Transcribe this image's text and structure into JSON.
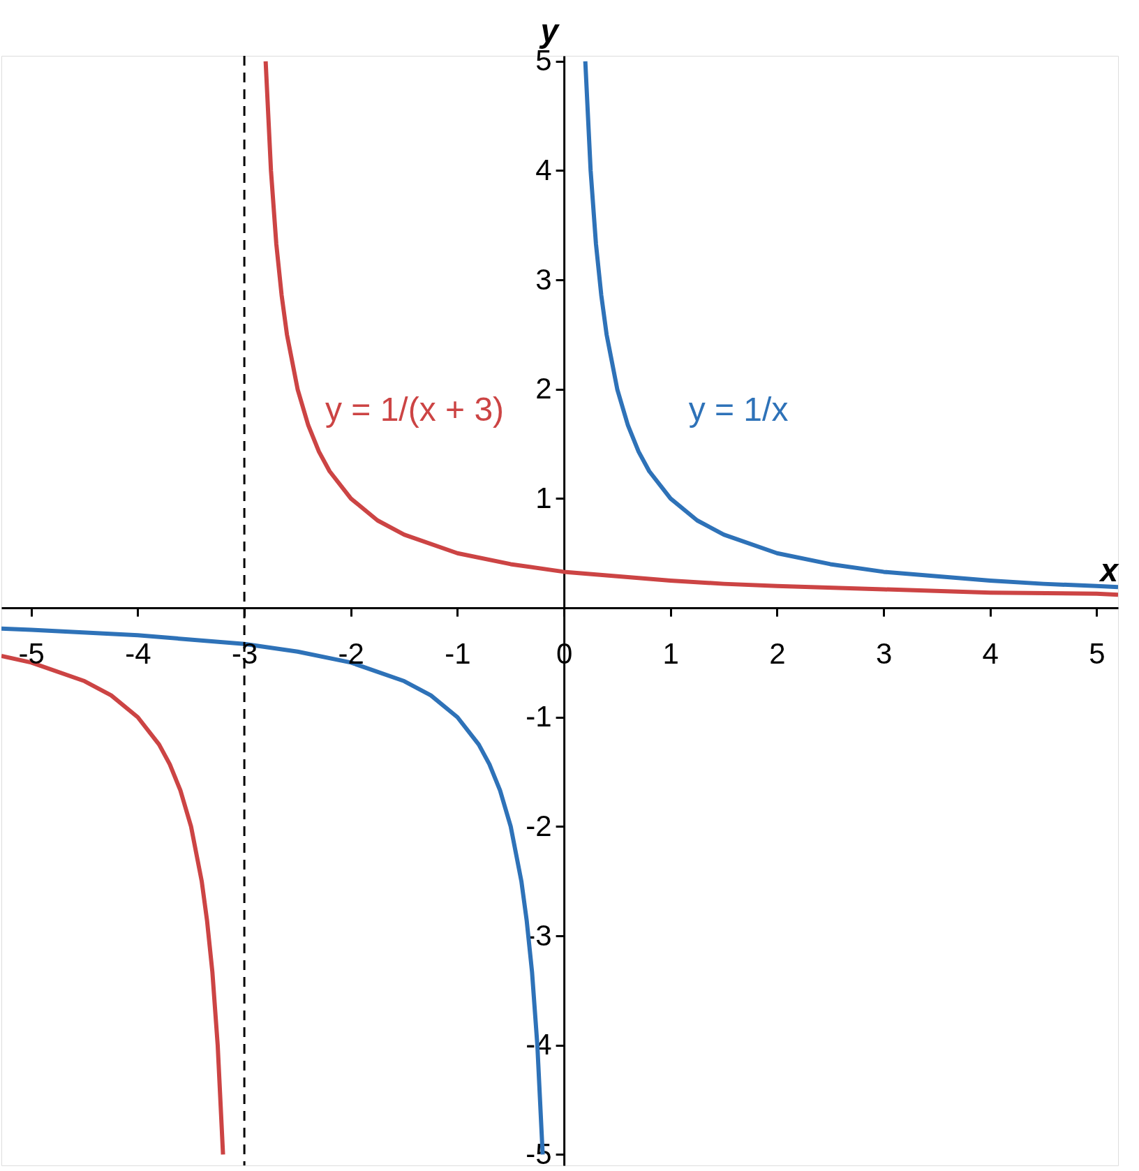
{
  "chart_data": {
    "type": "line",
    "xlabel": "x",
    "ylabel": "y",
    "xlim": [
      -5.28,
      5.2
    ],
    "ylim": [
      -5.1,
      5.05
    ],
    "xticks": [
      -5,
      -4,
      -3,
      -2,
      -1,
      0,
      1,
      2,
      3,
      4,
      5
    ],
    "yticks": [
      -5,
      -4,
      -3,
      -2,
      -1,
      1,
      2,
      3,
      4,
      5
    ],
    "grid": false,
    "line_style": "solid",
    "marker": "none",
    "series": [
      {
        "name": "y = 1/(x + 3)",
        "color": "#cc4444",
        "x": [
          -5.28,
          -5,
          -4.5,
          -4.25,
          -4,
          -3.8,
          -3.7,
          -3.6,
          -3.5,
          -3.4,
          -3.35,
          -3.3,
          -3.25,
          -3.2,
          -3,
          -2.8,
          -2.75,
          -2.7,
          -2.65,
          -2.6,
          -2.5,
          -2.4,
          -2.3,
          -2.2,
          -2,
          -1.75,
          -1.5,
          -1,
          -0.5,
          0,
          0.5,
          1,
          1.5,
          2,
          3,
          4,
          5,
          5.2
        ],
        "values": [
          -0.44,
          -0.5,
          -0.67,
          -0.8,
          -1,
          -1.25,
          -1.43,
          -1.67,
          -2,
          -2.5,
          -2.86,
          -3.33,
          -4,
          -5,
          null,
          5,
          4,
          3.33,
          2.86,
          2.5,
          2,
          1.67,
          1.43,
          1.25,
          1,
          0.8,
          0.67,
          0.5,
          0.4,
          0.33,
          0.29,
          0.25,
          0.22,
          0.2,
          0.17,
          0.14,
          0.13,
          0.12
        ]
      },
      {
        "name": "y = 1/x",
        "color": "#2e72b8",
        "x": [
          -5.28,
          -5,
          -4,
          -3,
          -2.5,
          -2,
          -1.5,
          -1.25,
          -1,
          -0.8,
          -0.7,
          -0.6,
          -0.5,
          -0.4,
          -0.35,
          -0.3,
          -0.25,
          -0.2,
          0,
          0.2,
          0.25,
          0.3,
          0.35,
          0.4,
          0.5,
          0.6,
          0.7,
          0.8,
          1,
          1.25,
          1.5,
          2,
          2.5,
          3,
          3.5,
          4,
          4.5,
          5,
          5.2
        ],
        "values": [
          -0.19,
          -0.2,
          -0.25,
          -0.33,
          -0.4,
          -0.5,
          -0.67,
          -0.8,
          -1,
          -1.25,
          -1.43,
          -1.67,
          -2,
          -2.5,
          -2.86,
          -3.33,
          -4,
          -5,
          null,
          5,
          4,
          3.33,
          2.86,
          2.5,
          2,
          1.67,
          1.43,
          1.25,
          1,
          0.8,
          0.67,
          0.5,
          0.4,
          0.33,
          0.29,
          0.25,
          0.22,
          0.2,
          0.19
        ]
      }
    ],
    "ref_lines": [
      {
        "axis": "x",
        "value": -3,
        "color": "#000000",
        "line_style": "dashed"
      }
    ]
  }
}
